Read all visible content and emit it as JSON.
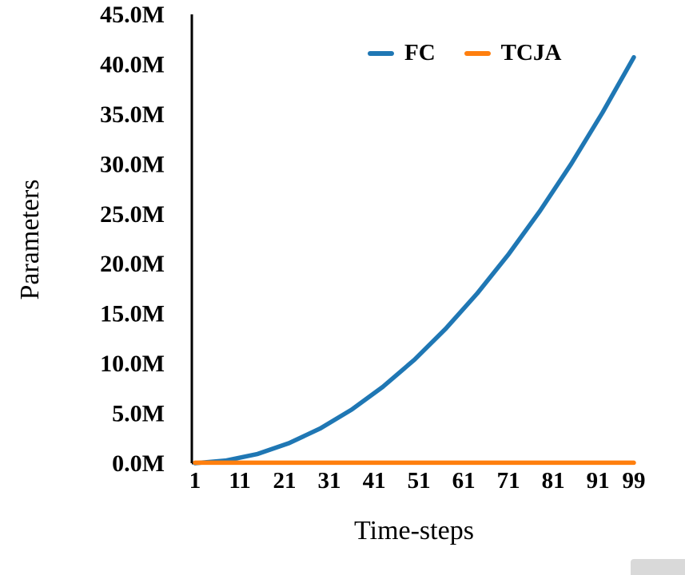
{
  "chart_data": {
    "type": "line",
    "title": "",
    "xlabel": "Time-steps",
    "ylabel": "Parameters",
    "xlim": [
      1,
      99
    ],
    "ylim": [
      0,
      45
    ],
    "unit_suffix": "M",
    "grid": false,
    "legend_position": "upper center inside, no frame",
    "x_ticks": [
      1,
      11,
      21,
      31,
      41,
      51,
      61,
      71,
      81,
      91,
      99
    ],
    "x_tick_labels": [
      "1",
      "11",
      "21",
      "31",
      "41",
      "51",
      "61",
      "71",
      "81",
      "91",
      "99"
    ],
    "y_ticks": [
      0,
      5,
      10,
      15,
      20,
      25,
      30,
      35,
      40,
      45
    ],
    "y_tick_labels": [
      "0.0M",
      "5.0M",
      "10.0M",
      "15.0M",
      "20.0M",
      "25.0M",
      "30.0M",
      "35.0M",
      "40.0M",
      "45.0M"
    ],
    "x": [
      1,
      8,
      15,
      22,
      29,
      36,
      43,
      50,
      57,
      64,
      71,
      78,
      85,
      92,
      99
    ],
    "series": [
      {
        "name": "FC",
        "color": "#1f77b4",
        "values": [
          0.0,
          0.27,
          0.93,
          2.01,
          3.49,
          5.38,
          7.68,
          10.38,
          13.49,
          17.01,
          20.93,
          25.27,
          30.0,
          35.15,
          40.7
        ]
      },
      {
        "name": "TCJA",
        "color": "#ff7f0e",
        "values": [
          0.05,
          0.05,
          0.05,
          0.05,
          0.05,
          0.05,
          0.05,
          0.05,
          0.05,
          0.05,
          0.05,
          0.05,
          0.05,
          0.05,
          0.05
        ]
      }
    ],
    "axis_color": "#000000",
    "background_color": "#ffffff"
  }
}
